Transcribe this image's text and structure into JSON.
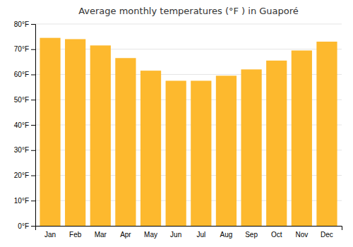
{
  "chart_data": {
    "type": "bar",
    "title": "Average monthly temperatures (°F ) in Guaporé",
    "categories": [
      "Jan",
      "Feb",
      "Mar",
      "Apr",
      "May",
      "Jun",
      "Jul",
      "Aug",
      "Sep",
      "Oct",
      "Nov",
      "Dec"
    ],
    "values": [
      74.5,
      74.0,
      71.5,
      66.5,
      61.5,
      57.5,
      57.5,
      59.5,
      62.0,
      65.5,
      69.5,
      73.0
    ],
    "color": "#FDB92E",
    "ylim": [
      0,
      80
    ],
    "yticks": [
      {
        "value": 0,
        "label": "0°F"
      },
      {
        "value": 10,
        "label": "10°F"
      },
      {
        "value": 20,
        "label": "20°F"
      },
      {
        "value": 30,
        "label": "30°F"
      },
      {
        "value": 40,
        "label": "40°F"
      },
      {
        "value": 50,
        "label": "50°F"
      },
      {
        "value": 60,
        "label": "60°F"
      },
      {
        "value": 70,
        "label": "70°F"
      },
      {
        "value": 80,
        "label": "80°F"
      }
    ],
    "grid": true
  }
}
